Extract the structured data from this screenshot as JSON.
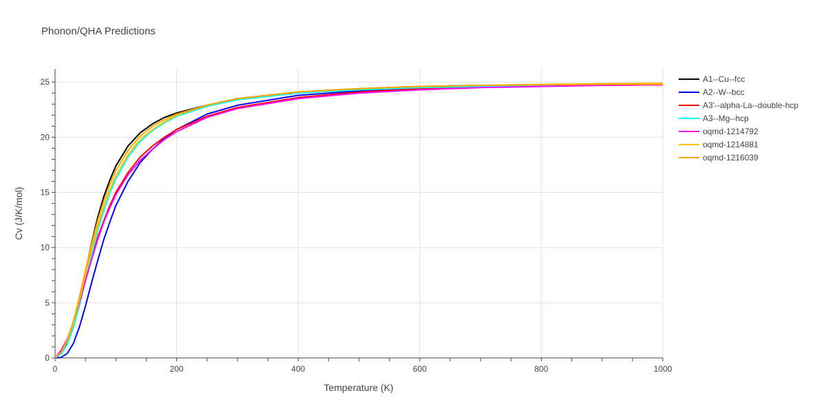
{
  "chart_data": {
    "type": "line",
    "title": "Phonon/QHA Predictions",
    "xlabel": "Temperature (K)",
    "ylabel": "Cv (J/K/mol)",
    "xlim": [
      0,
      1000
    ],
    "ylim": [
      0,
      26.2
    ],
    "xticks": [
      0,
      200,
      400,
      600,
      800,
      1000
    ],
    "yticks": [
      0,
      5,
      10,
      15,
      20,
      25
    ],
    "grid": true,
    "legend_position": "right",
    "series": [
      {
        "name": "A1--Cu--fcc",
        "color": "#000000",
        "x": [
          0,
          10,
          20,
          30,
          40,
          50,
          60,
          70,
          80,
          90,
          100,
          120,
          140,
          160,
          180,
          200,
          250,
          300,
          400,
          500,
          600,
          700,
          800,
          900,
          1000
        ],
        "y": [
          0,
          0.4,
          1.3,
          2.9,
          5.2,
          7.8,
          10.4,
          12.7,
          14.6,
          16.1,
          17.4,
          19.2,
          20.4,
          21.2,
          21.8,
          22.2,
          22.9,
          23.5,
          24.1,
          24.4,
          24.6,
          24.7,
          24.75,
          24.8,
          24.8
        ]
      },
      {
        "name": "A2--W--bcc",
        "color": "#0000ff",
        "x": [
          0,
          10,
          20,
          30,
          40,
          50,
          60,
          70,
          80,
          90,
          100,
          120,
          140,
          160,
          180,
          200,
          250,
          300,
          400,
          500,
          600,
          700,
          800,
          900,
          1000
        ],
        "y": [
          0,
          0.05,
          0.4,
          1.3,
          2.8,
          4.7,
          6.8,
          8.8,
          10.7,
          12.3,
          13.8,
          16.0,
          17.7,
          18.9,
          19.9,
          20.7,
          22.1,
          22.9,
          23.8,
          24.2,
          24.5,
          24.6,
          24.7,
          24.75,
          24.8
        ]
      },
      {
        "name": "A3'--alpha-La--double-hcp",
        "color": "#ff0000",
        "x": [
          0,
          10,
          20,
          30,
          40,
          50,
          60,
          70,
          80,
          90,
          100,
          120,
          140,
          160,
          180,
          200,
          250,
          300,
          400,
          500,
          600,
          700,
          800,
          900,
          1000
        ],
        "y": [
          0,
          0.6,
          1.6,
          3.1,
          5.0,
          7.0,
          9.0,
          10.9,
          12.4,
          13.8,
          15.0,
          16.8,
          18.2,
          19.2,
          20.0,
          20.7,
          21.9,
          22.7,
          23.6,
          24.1,
          24.4,
          24.55,
          24.65,
          24.7,
          24.75
        ]
      },
      {
        "name": "A3--Mg--hcp",
        "color": "#00ffff",
        "x": [
          0,
          10,
          20,
          30,
          40,
          50,
          60,
          70,
          80,
          90,
          100,
          120,
          140,
          160,
          180,
          200,
          250,
          300,
          400,
          500,
          600,
          700,
          800,
          900,
          1000
        ],
        "y": [
          0,
          0.35,
          1.2,
          2.7,
          4.7,
          7.0,
          9.3,
          11.5,
          13.3,
          14.9,
          16.2,
          18.2,
          19.6,
          20.6,
          21.3,
          21.9,
          22.8,
          23.4,
          24.0,
          24.3,
          24.5,
          24.6,
          24.7,
          24.75,
          24.8
        ]
      },
      {
        "name": "oqmd-1214792",
        "color": "#ff00ff",
        "x": [
          0,
          10,
          20,
          30,
          40,
          50,
          60,
          70,
          80,
          90,
          100,
          120,
          140,
          160,
          180,
          200,
          250,
          300,
          400,
          500,
          600,
          700,
          800,
          900,
          1000
        ],
        "y": [
          0,
          0.7,
          1.7,
          3.2,
          5.0,
          7.0,
          8.9,
          10.7,
          12.3,
          13.6,
          14.8,
          16.6,
          17.9,
          18.9,
          19.8,
          20.5,
          21.8,
          22.6,
          23.5,
          24.0,
          24.3,
          24.5,
          24.6,
          24.7,
          24.75
        ]
      },
      {
        "name": "oqmd-1214881",
        "color": "#ffc000",
        "x": [
          0,
          10,
          20,
          30,
          40,
          50,
          60,
          70,
          80,
          90,
          100,
          120,
          140,
          160,
          180,
          200,
          250,
          300,
          400,
          500,
          600,
          700,
          800,
          900,
          1000
        ],
        "y": [
          0,
          0.5,
          1.5,
          3.1,
          5.2,
          7.5,
          9.8,
          11.9,
          13.7,
          15.2,
          16.5,
          18.4,
          19.8,
          20.7,
          21.4,
          22.0,
          22.9,
          23.5,
          24.1,
          24.4,
          24.6,
          24.7,
          24.8,
          24.85,
          24.9
        ]
      },
      {
        "name": "oqmd-1216039",
        "color": "#ffa500",
        "x": [
          0,
          10,
          20,
          30,
          40,
          50,
          60,
          70,
          80,
          90,
          100,
          120,
          140,
          160,
          180,
          200,
          250,
          300,
          400,
          500,
          600,
          700,
          800,
          900,
          1000
        ],
        "y": [
          0,
          0.5,
          1.6,
          3.3,
          5.5,
          7.9,
          10.3,
          12.4,
          14.2,
          15.7,
          17.0,
          18.8,
          20.1,
          21.0,
          21.6,
          22.1,
          22.9,
          23.5,
          24.1,
          24.4,
          24.6,
          24.7,
          24.75,
          24.8,
          24.8
        ]
      }
    ]
  }
}
